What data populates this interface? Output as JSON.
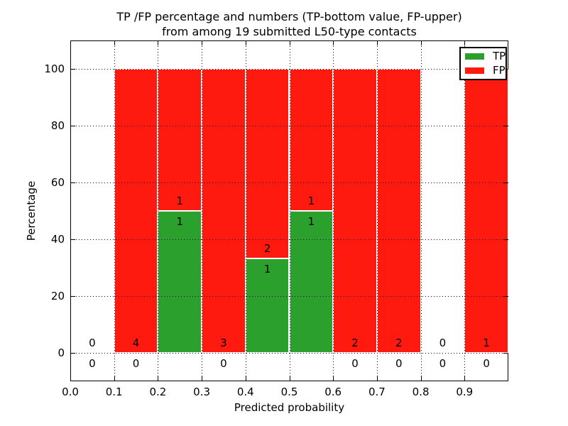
{
  "figure": {
    "title_line1": "TP /FP percentage and numbers (TP-bottom value, FP-upper)",
    "title_line2": "from among 19 submitted L50-type contacts"
  },
  "axes": {
    "xlabel": "Predicted probability",
    "ylabel": "Percentage",
    "x_tick_labels": [
      "0.0",
      "0.1",
      "0.2",
      "0.3",
      "0.4",
      "0.5",
      "0.6",
      "0.7",
      "0.8",
      "0.9"
    ],
    "y_tick_labels": [
      "0",
      "20",
      "40",
      "60",
      "80",
      "100"
    ]
  },
  "legend": {
    "entries": [
      {
        "label": "TP",
        "color": "#2ca02c"
      },
      {
        "label": "FP",
        "color": "#ff1a10"
      }
    ]
  },
  "colors": {
    "tp": "#2ca02c",
    "fp": "#ff1a10",
    "grid": "#000000",
    "background": "#ffffff",
    "bar_edge": "#ffffff"
  },
  "chart_data": {
    "type": "bar",
    "stacked": true,
    "title": "TP /FP percentage and numbers (TP-bottom value, FP-upper)\nfrom among 19 submitted L50-type contacts",
    "xlabel": "Predicted probability",
    "ylabel": "Percentage",
    "xlim": [
      0.0,
      1.0
    ],
    "ylim": [
      -10,
      110
    ],
    "x_ticks": [
      0.0,
      0.1,
      0.2,
      0.3,
      0.4,
      0.5,
      0.6,
      0.7,
      0.8,
      0.9
    ],
    "y_ticks": [
      0,
      20,
      40,
      60,
      80,
      100
    ],
    "grid": "dotted",
    "grid_above_bars": true,
    "legend_position": "upper right",
    "bin_edges": [
      0.0,
      0.1,
      0.2,
      0.3,
      0.4,
      0.5,
      0.6,
      0.7,
      0.8,
      0.9,
      1.0
    ],
    "series": [
      {
        "name": "TP",
        "color": "#2ca02c",
        "pct": [
          0,
          0,
          50,
          0,
          33.33,
          50,
          0,
          0,
          0,
          0
        ],
        "counts": [
          0,
          0,
          1,
          0,
          1,
          1,
          0,
          0,
          0,
          0
        ]
      },
      {
        "name": "FP",
        "color": "#ff1a10",
        "pct": [
          0,
          100,
          50,
          100,
          66.67,
          50,
          100,
          100,
          0,
          100
        ],
        "counts": [
          0,
          4,
          1,
          3,
          2,
          1,
          2,
          2,
          0,
          1
        ]
      }
    ],
    "label_rule": "FP count printed above the TP/FP boundary line, TP count printed below it, centered in each bin",
    "total_contacts": 19
  }
}
